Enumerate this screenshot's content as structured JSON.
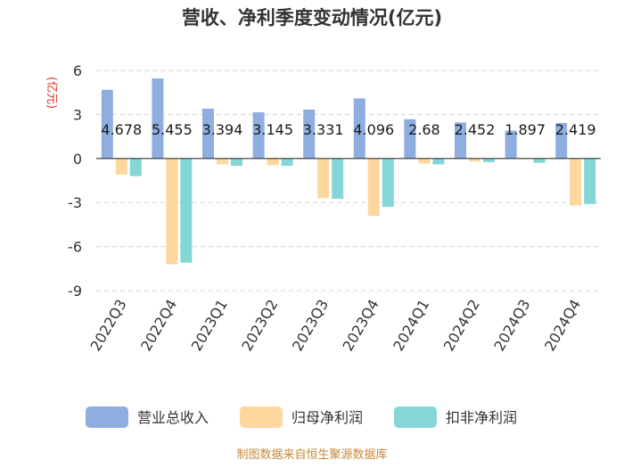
{
  "chart_data": {
    "type": "bar",
    "title": "营收、净利季度变动情况(亿元)",
    "ylabel": "(亿元)",
    "xlabel": "",
    "ylim": [
      -9,
      6
    ],
    "yticks": [
      6,
      3,
      0,
      -3,
      -6,
      -9
    ],
    "grid": true,
    "legend_position": "bottom",
    "categories": [
      "2022Q3",
      "2022Q4",
      "2023Q1",
      "2023Q2",
      "2023Q3",
      "2023Q4",
      "2024Q1",
      "2024Q2",
      "2024Q3",
      "2024Q4"
    ],
    "series": [
      {
        "name": "营业总收入",
        "color": "#8eaee0",
        "values": [
          4.678,
          5.455,
          3.394,
          3.145,
          3.331,
          4.096,
          2.68,
          2.452,
          1.897,
          2.419
        ],
        "labels": [
          "4.678",
          "5.455",
          "3.394",
          "3.145",
          "3.331",
          "4.096",
          "2.68",
          "2.452",
          "1.897",
          "2.419"
        ]
      },
      {
        "name": "归母净利润",
        "color": "#fcd79e",
        "values": [
          -1.1,
          -7.2,
          -0.4,
          -0.45,
          -2.7,
          -3.9,
          -0.35,
          -0.2,
          -0.05,
          -3.2
        ]
      },
      {
        "name": "扣非净利润",
        "color": "#85d6d6",
        "values": [
          -1.2,
          -7.1,
          -0.5,
          -0.5,
          -2.75,
          -3.3,
          -0.4,
          -0.25,
          -0.3,
          -3.1
        ]
      }
    ],
    "source": "制图数据来自恒生聚源数据库"
  }
}
